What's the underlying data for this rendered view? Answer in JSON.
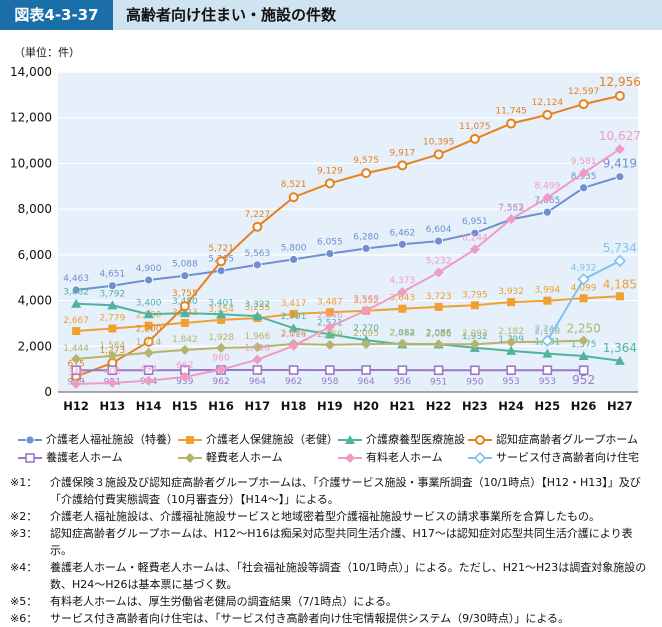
{
  "header": {
    "figure_label": "図表4-3-37",
    "title": "高齢者向け住まい・施設の件数"
  },
  "unit_label": "（単位：件）",
  "colors": {
    "header_bg": "#1b6fa8",
    "header_band": "#cfe3f0",
    "plot_bg": "#e6f0fb"
  },
  "chart_data": {
    "type": "line",
    "categories": [
      "H12",
      "H13",
      "H14",
      "H15",
      "H16",
      "H17",
      "H18",
      "H19",
      "H20",
      "H21",
      "H22",
      "H23",
      "H24",
      "H25",
      "H26",
      "H27"
    ],
    "ylim": [
      0,
      14000
    ],
    "yticks": [
      0,
      2000,
      4000,
      6000,
      8000,
      10000,
      12000,
      14000
    ],
    "ytick_labels": [
      "0",
      "2,000",
      "4,000",
      "6,000",
      "8,000",
      "10,000",
      "12,000",
      "14,000"
    ],
    "grid": true,
    "legend_position": "bottom",
    "series": [
      {
        "name": "介護老人福祉施設（特養）",
        "color": "#6f8fd0",
        "marker": "circle-filled",
        "values": [
          4463,
          4651,
          4900,
          5088,
          5305,
          5563,
          5800,
          6055,
          6280,
          6462,
          6604,
          6951,
          7552,
          7865,
          8935,
          9419
        ],
        "labels": [
          "4,463",
          "4,651",
          "4,900",
          "5,088",
          "5,305",
          "5,563",
          "5,800",
          "6,055",
          "6,280",
          "6,462",
          "6,604",
          "6,951",
          "7,552",
          "7,865",
          "8,935",
          "9,419"
        ]
      },
      {
        "name": "介護老人保健施設（老健）",
        "color": "#f0a030",
        "marker": "square-filled",
        "values": [
          2667,
          2779,
          2900,
          3023,
          3154,
          3235,
          3417,
          3487,
          3552,
          3643,
          3723,
          3795,
          3932,
          3994,
          4099,
          4185
        ],
        "labels": [
          "2,667",
          "2,779",
          "2,900",
          "3,023",
          "3,154",
          "3,235",
          "3,417",
          "3,487",
          "3,552",
          "3,643",
          "3,723",
          "3,795",
          "3,932",
          "3,994",
          "4,099",
          "4,185"
        ]
      },
      {
        "name": "介護療養型医療施設",
        "color": "#4fb3a0",
        "marker": "triangle-filled",
        "values": [
          3862,
          3792,
          3400,
          3450,
          3401,
          3322,
          2791,
          2521,
          2270,
          2082,
          2086,
          1932,
          1799,
          1681,
          1575,
          1364
        ],
        "labels": [
          "3,862",
          "3,792",
          "3,400",
          "3,450",
          "3,401",
          "3,322",
          "2,791",
          "2,521",
          "2,270",
          "2,082",
          "2,086",
          "1,932",
          "1,799",
          "1,681",
          "1,575",
          "1,364"
        ]
      },
      {
        "name": "認知症高齢者グループホーム",
        "color": "#e8801e",
        "marker": "circle-open",
        "values": [
          675,
          1273,
          2200,
          3755,
          5721,
          7227,
          8521,
          9129,
          9575,
          9917,
          10395,
          11075,
          11745,
          12124,
          12597,
          12956
        ],
        "labels": [
          "675",
          "1,273",
          "2,200",
          "3,755",
          "5,721",
          "7,227",
          "8,521",
          "9,129",
          "9,575",
          "9,917",
          "10,395",
          "11,075",
          "11,745",
          "12,124",
          "12,597",
          "12,956"
        ]
      },
      {
        "name": "養護老人ホーム",
        "color": "#9a78c8",
        "marker": "square-open",
        "values": [
          949,
          951,
          954,
          959,
          962,
          964,
          962,
          958,
          964,
          956,
          951,
          950,
          953,
          953,
          952,
          null
        ],
        "labels": [
          "949",
          "951",
          "954",
          "959",
          "962",
          "964",
          "962",
          "958",
          "964",
          "956",
          "951",
          "950",
          "953",
          "953",
          "952",
          ""
        ]
      },
      {
        "name": "軽費老人ホーム",
        "color": "#b6b46a",
        "marker": "diamond-filled",
        "values": [
          1444,
          1584,
          1714,
          1842,
          1928,
          1966,
          2104,
          2059,
          2095,
          2114,
          2086,
          2092,
          2182,
          2198,
          2250,
          null
        ],
        "labels": [
          "1,444",
          "1,584",
          "1,714",
          "1,842",
          "1,928",
          "1,966",
          "2,104",
          "2,059",
          "2,095",
          "2,114",
          "2,086",
          "2,092",
          "2,182",
          "2,198",
          "2,250",
          ""
        ]
      },
      {
        "name": "有料老人ホーム",
        "color": "#ef9cc4",
        "marker": "diamond-filled",
        "values": [
          349,
          400,
          494,
          662,
          980,
          1418,
          2016,
          2846,
          3569,
          4373,
          5232,
          6244,
          7563,
          8499,
          9581,
          10627
        ],
        "labels": [
          "349",
          "400",
          "494",
          "662",
          "980",
          "1,418",
          "2,016",
          "2,846",
          "3,569",
          "4,373",
          "5,232",
          "6,244",
          "7,563",
          "8,499",
          "9,581",
          "10,627"
        ]
      },
      {
        "name": "サービス付き高齢者向け住宅",
        "color": "#7ec3ee",
        "marker": "diamond-open",
        "values": [
          null,
          null,
          null,
          null,
          null,
          null,
          null,
          null,
          null,
          null,
          null,
          null,
          null,
          2245,
          4932,
          5734
        ],
        "labels": [
          "",
          "",
          "",
          "",
          "",
          "",
          "",
          "",
          "",
          "",
          "",
          "",
          "",
          "2,245",
          "4,932",
          "5,734"
        ]
      }
    ]
  },
  "notes": [
    {
      "mark": "※1：",
      "text": "介護保険３施設及び認知症高齢者グループホームは、「介護サービス施設・事業所調査（10/1時点）【H12・H13】」及び「介護給付費実態調査（10月審査分）【H14～】」による。"
    },
    {
      "mark": "※2：",
      "text": "介護老人福祉施設は、介護福祉施設サービスと地域密着型介護福祉施設サービスの請求事業所を合算したもの。"
    },
    {
      "mark": "※3：",
      "text": "認知症高齢者グループホームは、H12～H16は痴呆対応型共同生活介護、H17～は認知症対応型共同生活介護により表示。"
    },
    {
      "mark": "※4：",
      "text": "養護老人ホーム・軽費老人ホームは、「社会福祉施設等調査（10/1時点）」による。ただし、H21～H23は調査対象施設の数、H24～H26は基本票に基づく数。"
    },
    {
      "mark": "※5：",
      "text": "有料老人ホームは、厚生労働省老健局の調査結果（7/1時点）による。"
    },
    {
      "mark": "※6：",
      "text": "サービス付き高齢者向け住宅は、「サービス付き高齢者向け住宅情報提供システム（9/30時点）」による。"
    }
  ]
}
